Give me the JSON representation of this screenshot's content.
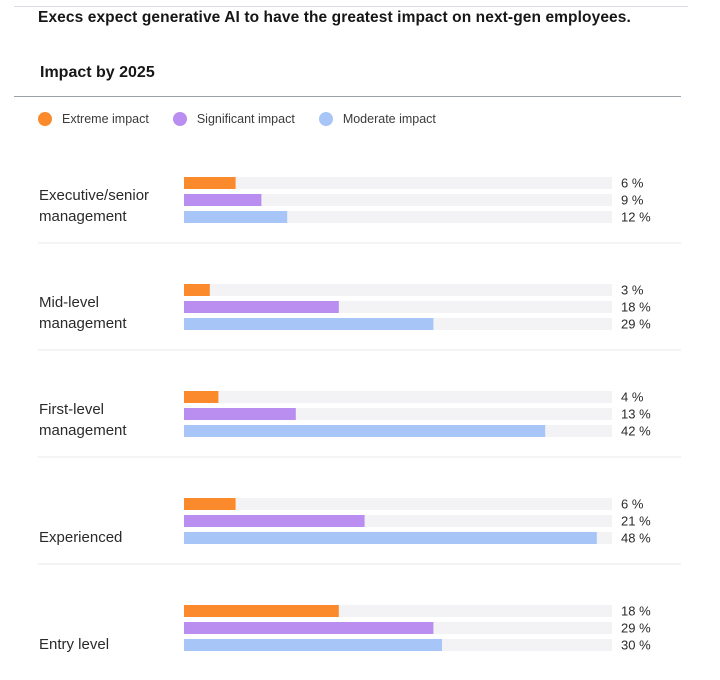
{
  "headline": "Execs expect generative AI to have the greatest impact on next-gen employees.",
  "colors": {
    "extreme": "#fb8a2c",
    "significant": "#b98ef0",
    "moderate": "#a7c6f7",
    "track": "#f3f2f4",
    "divider": "#e8e8e8"
  },
  "chart_data": {
    "type": "bar",
    "orientation": "horizontal",
    "title": "Impact by 2025",
    "unit": "%",
    "xlim": [
      0,
      50
    ],
    "grid": false,
    "legend_position": "top-left",
    "categories": [
      [
        "Executive/senior",
        "management"
      ],
      [
        "Mid-level",
        "management"
      ],
      [
        "First-level",
        "management"
      ],
      [
        "Experienced"
      ],
      [
        "Entry level"
      ]
    ],
    "series": [
      {
        "name": "Extreme impact",
        "color": "#fb8a2c",
        "values": [
          6,
          3,
          4,
          6,
          18
        ]
      },
      {
        "name": "Significant impact",
        "color": "#b98ef0",
        "values": [
          9,
          18,
          13,
          21,
          29
        ]
      },
      {
        "name": "Moderate impact",
        "color": "#a7c6f7",
        "values": [
          12,
          29,
          42,
          48,
          30
        ]
      }
    ]
  }
}
